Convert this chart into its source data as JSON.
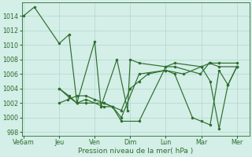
{
  "xlabel": "Pression niveau de la mer( hPa )",
  "background_color": "#d4eee8",
  "grid_color": "#b0d8cc",
  "line_color": "#2d6e2d",
  "ylim": [
    997.5,
    1015.8
  ],
  "yticks": [
    998,
    1000,
    1002,
    1004,
    1006,
    1008,
    1010,
    1012,
    1014
  ],
  "xtick_labels": [
    "Ve6am",
    "Jeu",
    "Ven",
    "Dim",
    "Lun",
    "Mar",
    "Mer"
  ],
  "xtick_positions": [
    0,
    2,
    4,
    6,
    8,
    10,
    12
  ],
  "xlim": [
    -0.1,
    12.7
  ],
  "series": [
    {
      "x": [
        0,
        0.6,
        2.0,
        2.55,
        3.0,
        4.0,
        4.35,
        5.25,
        5.85,
        6.0,
        6.5,
        8.0,
        8.5,
        9.95,
        10.45,
        11.0,
        12.0
      ],
      "y": [
        1014,
        1015.2,
        1010.2,
        1011.4,
        1002,
        1010.5,
        1001.5,
        1008,
        1001,
        1008,
        1007.5,
        1007,
        1007,
        1006,
        1007.5,
        1007,
        1007
      ]
    },
    {
      "x": [
        2.0,
        2.55,
        3.0,
        3.5,
        4.5,
        5.0,
        5.5,
        6.5,
        8.0,
        8.5,
        10.0,
        10.5,
        11.0,
        11.5,
        12.0
      ],
      "y": [
        1004,
        1002.8,
        1002,
        1002.5,
        1001.5,
        1001.5,
        999.5,
        999.5,
        1007,
        1007.5,
        1007,
        1005,
        998.5,
        1004.5,
        1007
      ]
    },
    {
      "x": [
        2.0,
        2.55,
        3.0,
        3.5,
        4.5,
        5.0,
        5.5,
        6.5,
        8.0,
        8.5,
        9.5,
        10.0,
        10.5,
        11.0,
        11.5,
        12.0
      ],
      "y": [
        1004,
        1003,
        1002,
        1002,
        1002,
        1001.5,
        1000,
        1006,
        1006.5,
        1006,
        1000,
        999.5,
        999,
        1006.5,
        1004.5,
        1007
      ]
    },
    {
      "x": [
        2.0,
        2.5,
        3.0,
        3.5,
        4.0,
        4.5,
        5.0,
        5.5,
        6.0,
        6.5,
        7.0,
        8.0,
        9.0,
        10.0,
        10.5,
        11.0,
        12.0
      ],
      "y": [
        1002,
        1002.5,
        1003,
        1003,
        1002.5,
        1002,
        1001.5,
        1001,
        1004,
        1005,
        1006,
        1006.5,
        1006,
        1007,
        1007.5,
        1007.5,
        1007.5
      ]
    }
  ]
}
